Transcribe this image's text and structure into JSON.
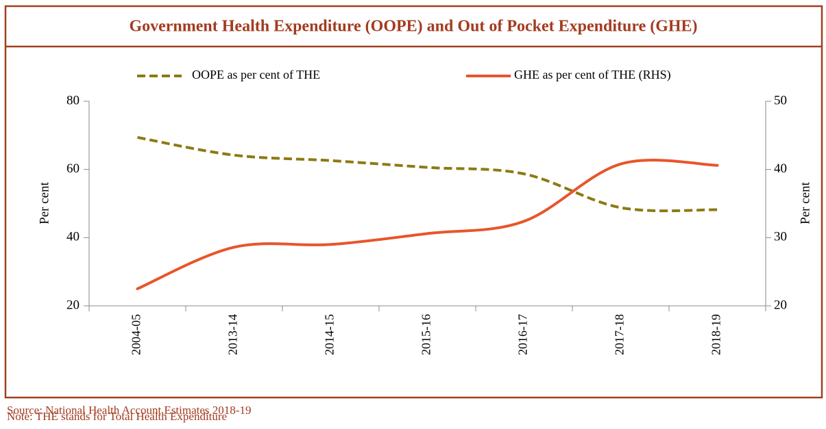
{
  "chart_data": {
    "type": "line",
    "title": "Government Health Expenditure (OOPE) and Out of Pocket Expenditure (GHE)",
    "categories": [
      "2004-05",
      "2013-14",
      "2014-15",
      "2015-16",
      "2016-17",
      "2017-18",
      "2018-19"
    ],
    "series": [
      {
        "name": "OOPE as per cent of THE",
        "color": "#8c7a12",
        "line_style": "dashed",
        "values": [
          69.4,
          64.2,
          62.6,
          60.6,
          58.7,
          48.8,
          48.2
        ]
      },
      {
        "name": "GHE as per cent of THE (RHS)",
        "color": "#e8552a",
        "line_style": "solid",
        "axis": "y2",
        "values": [
          22.5,
          28.6,
          29.0,
          30.6,
          32.4,
          40.8,
          40.6
        ]
      }
    ],
    "ylabel": "Per cent",
    "y2label": "Per cent",
    "ylim": [
      20,
      80
    ],
    "yticks": [
      20,
      40,
      60,
      80
    ],
    "y2lim": [
      20,
      50
    ],
    "y2ticks": [
      20,
      30,
      40,
      50
    ],
    "legend": "top",
    "grid": false,
    "source": "Source: National Health Account Estimates 2018-19",
    "note": "Note: THE stands for Total Health Expenditure"
  }
}
